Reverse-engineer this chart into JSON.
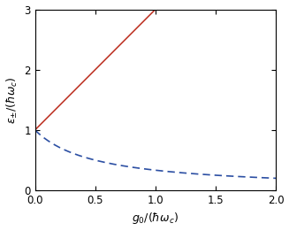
{
  "x_min": 0,
  "x_max": 2,
  "y_min": 0,
  "y_max": 3,
  "xlabel": "$g_0/(\\hbar\\omega_c)$",
  "ylabel": "$\\epsilon_{\\pm}/(\\hbar\\omega_c)$",
  "red_color": "#c0392b",
  "blue_color": "#2c4fa3",
  "xticks": [
    0,
    0.5,
    1,
    1.5,
    2
  ],
  "yticks": [
    0,
    1,
    2,
    3
  ],
  "figsize": [
    3.27,
    2.61
  ],
  "dpi": 100
}
